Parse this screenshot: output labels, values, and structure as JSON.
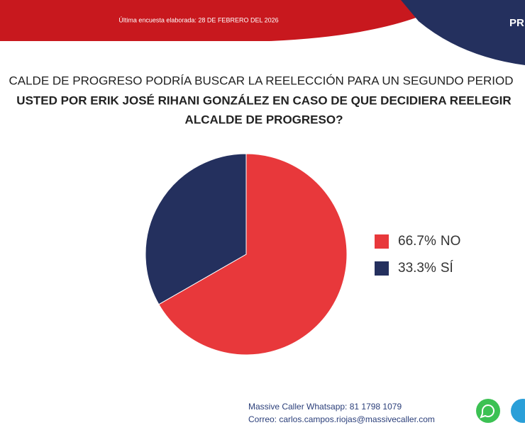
{
  "header": {
    "survey_date": "Última encuesta elaborada: 28 DE FEBRERO DEL 2026",
    "corner_text": "PR"
  },
  "question": {
    "lines": [
      "CALDE DE PROGRESO PODRÍA BUSCAR LA REELECCIÓN PARA UN SEGUNDO PERIOD",
      "USTED POR ERIK JOSÉ RIHANI GONZÁLEZ EN CASO DE QUE DECIDIERA REELEGIR",
      "ALCALDE DE PROGRESO?"
    ]
  },
  "chart_data": {
    "type": "pie",
    "categories": [
      "NO",
      "SÍ"
    ],
    "values": [
      66.7,
      33.3
    ],
    "value_labels": [
      "66.7%",
      "33.3%"
    ],
    "colors": [
      "#e8383b",
      "#24305e"
    ],
    "legend": "right"
  },
  "footer": {
    "whatsapp": "Massive Caller Whatsapp: 81 1798 1079",
    "email": "Correo: carlos.campos.riojas@massivecaller.com"
  }
}
